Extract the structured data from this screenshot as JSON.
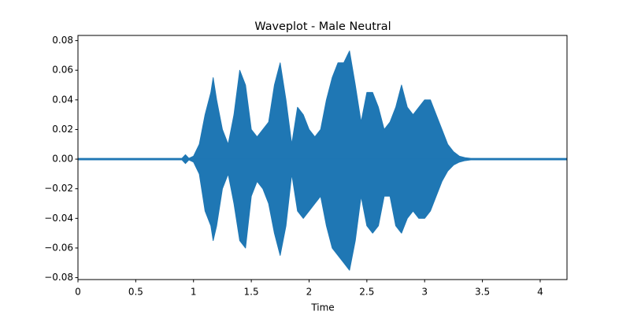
{
  "chart_data": {
    "type": "area",
    "title": "Waveplot - Male Neutral",
    "xlabel": "Time",
    "x": [
      0,
      0.9,
      0.93,
      0.96,
      1.0,
      1.05,
      1.1,
      1.15,
      1.17,
      1.2,
      1.25,
      1.3,
      1.35,
      1.4,
      1.45,
      1.5,
      1.55,
      1.6,
      1.65,
      1.7,
      1.75,
      1.8,
      1.85,
      1.9,
      1.95,
      2.0,
      2.05,
      2.1,
      2.15,
      2.2,
      2.25,
      2.3,
      2.35,
      2.4,
      2.45,
      2.5,
      2.55,
      2.6,
      2.65,
      2.7,
      2.75,
      2.8,
      2.85,
      2.9,
      2.95,
      3.0,
      3.05,
      3.1,
      3.15,
      3.2,
      3.25,
      3.3,
      3.35,
      3.4,
      4.23
    ],
    "series": [
      {
        "color": "#1f77b4",
        "values": [
          0.0005,
          0.0005,
          0.003,
          0.0005,
          0.002,
          0.01,
          0.03,
          0.045,
          0.055,
          0.04,
          0.02,
          0.01,
          0.03,
          0.06,
          0.05,
          0.02,
          0.015,
          0.02,
          0.025,
          0.05,
          0.065,
          0.04,
          0.01,
          0.035,
          0.03,
          0.02,
          0.015,
          0.02,
          0.04,
          0.055,
          0.065,
          0.065,
          0.073,
          0.05,
          0.025,
          0.045,
          0.045,
          0.035,
          0.02,
          0.025,
          0.035,
          0.05,
          0.035,
          0.03,
          0.035,
          0.04,
          0.04,
          0.03,
          0.02,
          0.01,
          0.005,
          0.002,
          0.001,
          0.0005,
          0.0005
        ]
      },
      {
        "color": "#1f77b4",
        "values": [
          -0.0005,
          -0.0005,
          -0.003,
          -0.0005,
          -0.002,
          -0.01,
          -0.035,
          -0.045,
          -0.055,
          -0.045,
          -0.02,
          -0.01,
          -0.03,
          -0.055,
          -0.06,
          -0.025,
          -0.015,
          -0.02,
          -0.03,
          -0.05,
          -0.065,
          -0.045,
          -0.01,
          -0.035,
          -0.04,
          -0.035,
          -0.03,
          -0.025,
          -0.045,
          -0.06,
          -0.065,
          -0.07,
          -0.075,
          -0.055,
          -0.025,
          -0.045,
          -0.05,
          -0.045,
          -0.025,
          -0.025,
          -0.045,
          -0.05,
          -0.04,
          -0.035,
          -0.04,
          -0.04,
          -0.035,
          -0.025,
          -0.015,
          -0.008,
          -0.004,
          -0.002,
          -0.001,
          -0.0005,
          -0.0005
        ]
      }
    ],
    "xlim": [
      0,
      4.232
    ],
    "xticks": [
      0,
      0.5,
      1,
      1.5,
      2,
      2.5,
      3,
      3.5,
      4
    ],
    "ylim": [
      -0.0813,
      0.0835
    ],
    "yticks": [
      {
        "value": -0.08,
        "label": "−0.08"
      },
      {
        "value": -0.06,
        "label": "−0.06"
      },
      {
        "value": -0.04,
        "label": "−0.04"
      },
      {
        "value": -0.02,
        "label": "−0.02"
      },
      {
        "value": 0,
        "label": "0.00"
      },
      0.02,
      0.04,
      0.06,
      0.08
    ]
  }
}
